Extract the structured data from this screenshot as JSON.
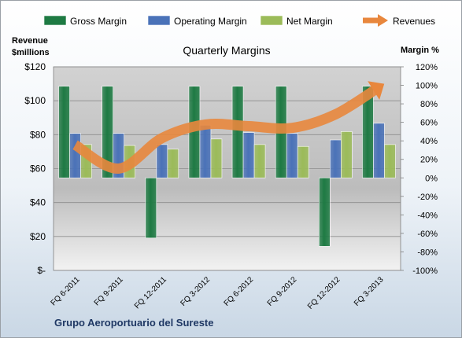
{
  "chart_data": {
    "type": "bar",
    "title": "Quarterly Margins",
    "footer": "Grupo Aeroportuario del Sureste",
    "left_axis_title_line1": "Revenue",
    "left_axis_title_line2": "$millions",
    "right_axis_title": "Margin %",
    "categories": [
      "FQ 6-2011",
      "FQ 9-2011",
      "FQ 12-2011",
      "FQ 3-2012",
      "FQ 6-2012",
      "FQ 9-2012",
      "FQ 12-2012",
      "FQ 3-2013"
    ],
    "left_axis": {
      "ylim": [
        0,
        120
      ],
      "ticks": [
        0,
        20,
        40,
        60,
        80,
        100,
        120
      ],
      "tick_labels": [
        "$-",
        "$20",
        "$40",
        "$60",
        "$80",
        "$100",
        "$120"
      ]
    },
    "right_axis": {
      "ylim": [
        -100,
        120
      ],
      "ticks": [
        -100,
        -80,
        -60,
        -40,
        -20,
        0,
        20,
        40,
        60,
        80,
        100,
        120
      ],
      "tick_labels": [
        "-100%",
        "-80%",
        "-60%",
        "-40%",
        "-20%",
        "0%",
        "20%",
        "40%",
        "60%",
        "80%",
        "100%",
        "120%"
      ]
    },
    "bar_series": [
      {
        "name": "Gross Margin",
        "color": "#1e7a43",
        "axis": "right",
        "values": [
          99,
          99,
          -65,
          99,
          99,
          99,
          -74,
          99
        ]
      },
      {
        "name": "Operating Margin",
        "color": "#4a72b8",
        "axis": "right",
        "values": [
          48,
          48,
          36,
          57,
          49,
          48,
          41,
          59
        ]
      },
      {
        "name": "Net Margin",
        "color": "#9bbb59",
        "axis": "right",
        "values": [
          36,
          35,
          31,
          42,
          36,
          34,
          50,
          36
        ]
      }
    ],
    "line_series": {
      "name": "Revenues",
      "color": "#e8873d",
      "axis": "left",
      "values": [
        74,
        60,
        78,
        86,
        85,
        84,
        92,
        108
      ]
    },
    "legend_position": "top",
    "grid": true
  }
}
